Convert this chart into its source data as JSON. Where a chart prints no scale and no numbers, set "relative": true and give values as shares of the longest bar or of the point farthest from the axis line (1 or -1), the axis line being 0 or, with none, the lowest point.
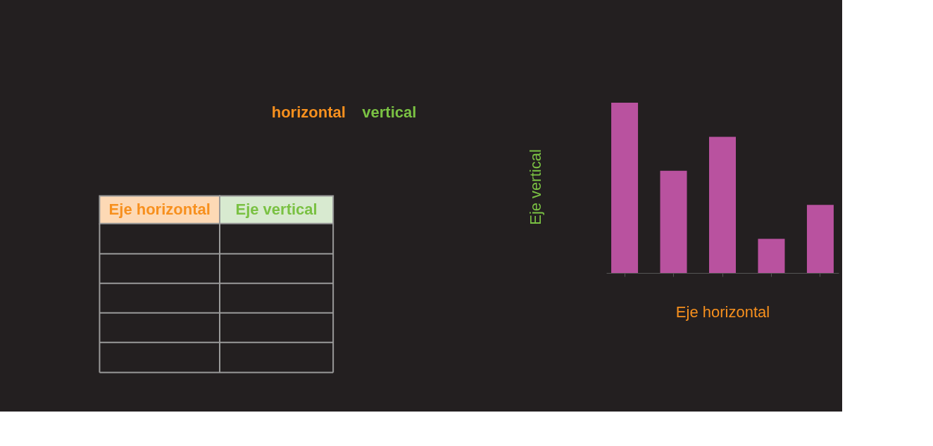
{
  "chart_data": [
    {
      "type": "other",
      "annotations": [
        "horizontal",
        "vertical",
        "Eje horizontal",
        "Eje vertical"
      ]
    },
    {
      "type": "bar",
      "relative": true,
      "categories": [
        null,
        null,
        null,
        null,
        null
      ],
      "values": [
        1,
        0.6,
        0.8,
        0.2,
        0.4
      ],
      "color": "#b9529f",
      "xlabel": "Eje horizontal",
      "ylabel": "Eje vertical"
    }
  ]
}
